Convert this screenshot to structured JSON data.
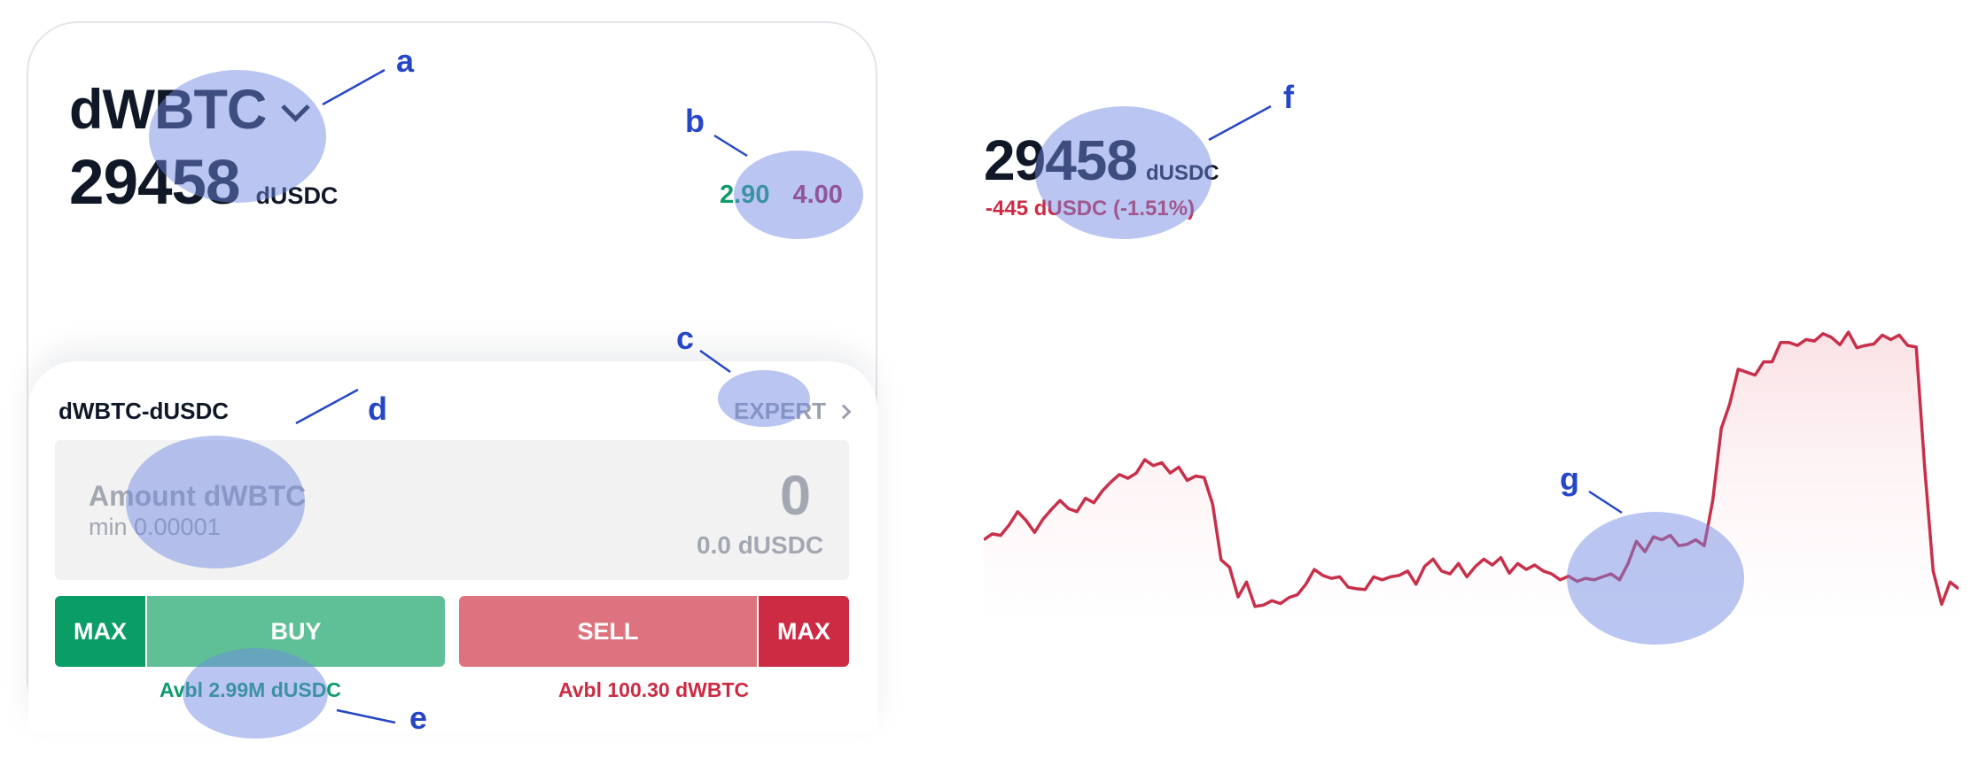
{
  "ticker": {
    "symbol": "dWBTC",
    "price": "29458",
    "unit": "dUSDC",
    "bid": "2.90",
    "ask": "4.00"
  },
  "order": {
    "pair": "dWBTC-dUSDC",
    "expert_label": "EXPERT",
    "amount_label": "Amount dWBTC",
    "amount_min": "min 0.00001",
    "amount_value": "0",
    "amount_converted": "0.0 dUSDC",
    "max_label": "MAX",
    "buy_label": "BUY",
    "sell_label": "SELL",
    "avbl_buy": "Avbl 2.99M dUSDC",
    "avbl_sell": "Avbl 100.30 dWBTC"
  },
  "overview": {
    "price": "29458",
    "unit": "dUSDC",
    "change": "-445 dUSDC (-1.51%)"
  },
  "colors": {
    "buy": "#0a9d66",
    "buy_light": "#5fc098",
    "sell": "#cd2b43",
    "sell_light": "#de7380",
    "line": "#c8304a",
    "annotation": "#2546c7"
  },
  "chart_data": {
    "type": "area",
    "title": "",
    "xlabel": "",
    "ylabel": "",
    "grid": false,
    "values": [
      29352,
      29360,
      29358,
      29372,
      29390,
      29378,
      29362,
      29380,
      29393,
      29405,
      29394,
      29390,
      29408,
      29402,
      29418,
      29430,
      29440,
      29435,
      29442,
      29460,
      29452,
      29456,
      29442,
      29450,
      29432,
      29438,
      29436,
      29400,
      29325,
      29315,
      29275,
      29295,
      29262,
      29264,
      29270,
      29266,
      29274,
      29278,
      29292,
      29312,
      29304,
      29300,
      29302,
      29288,
      29286,
      29285,
      29302,
      29298,
      29302,
      29304,
      29310,
      29292,
      29316,
      29326,
      29310,
      29306,
      29320,
      29302,
      29316,
      29326,
      29318,
      29328,
      29307,
      29320,
      29312,
      29318,
      29310,
      29306,
      29298,
      29303,
      29296,
      29300,
      29298,
      29302,
      29306,
      29298,
      29320,
      29350,
      29336,
      29356,
      29352,
      29358,
      29344,
      29346,
      29352,
      29344,
      29405,
      29502,
      29535,
      29582,
      29578,
      29574,
      29592,
      29592,
      29618,
      29618,
      29614,
      29622,
      29620,
      29630,
      29625,
      29615,
      29632,
      29611,
      29614,
      29616,
      29628,
      29622,
      29628,
      29614,
      29612,
      29450,
      29310,
      29265,
      29295,
      29286
    ]
  },
  "annotations": {
    "a": "a",
    "b": "b",
    "c": "c",
    "d": "d",
    "e": "e",
    "f": "f",
    "g": "g"
  }
}
